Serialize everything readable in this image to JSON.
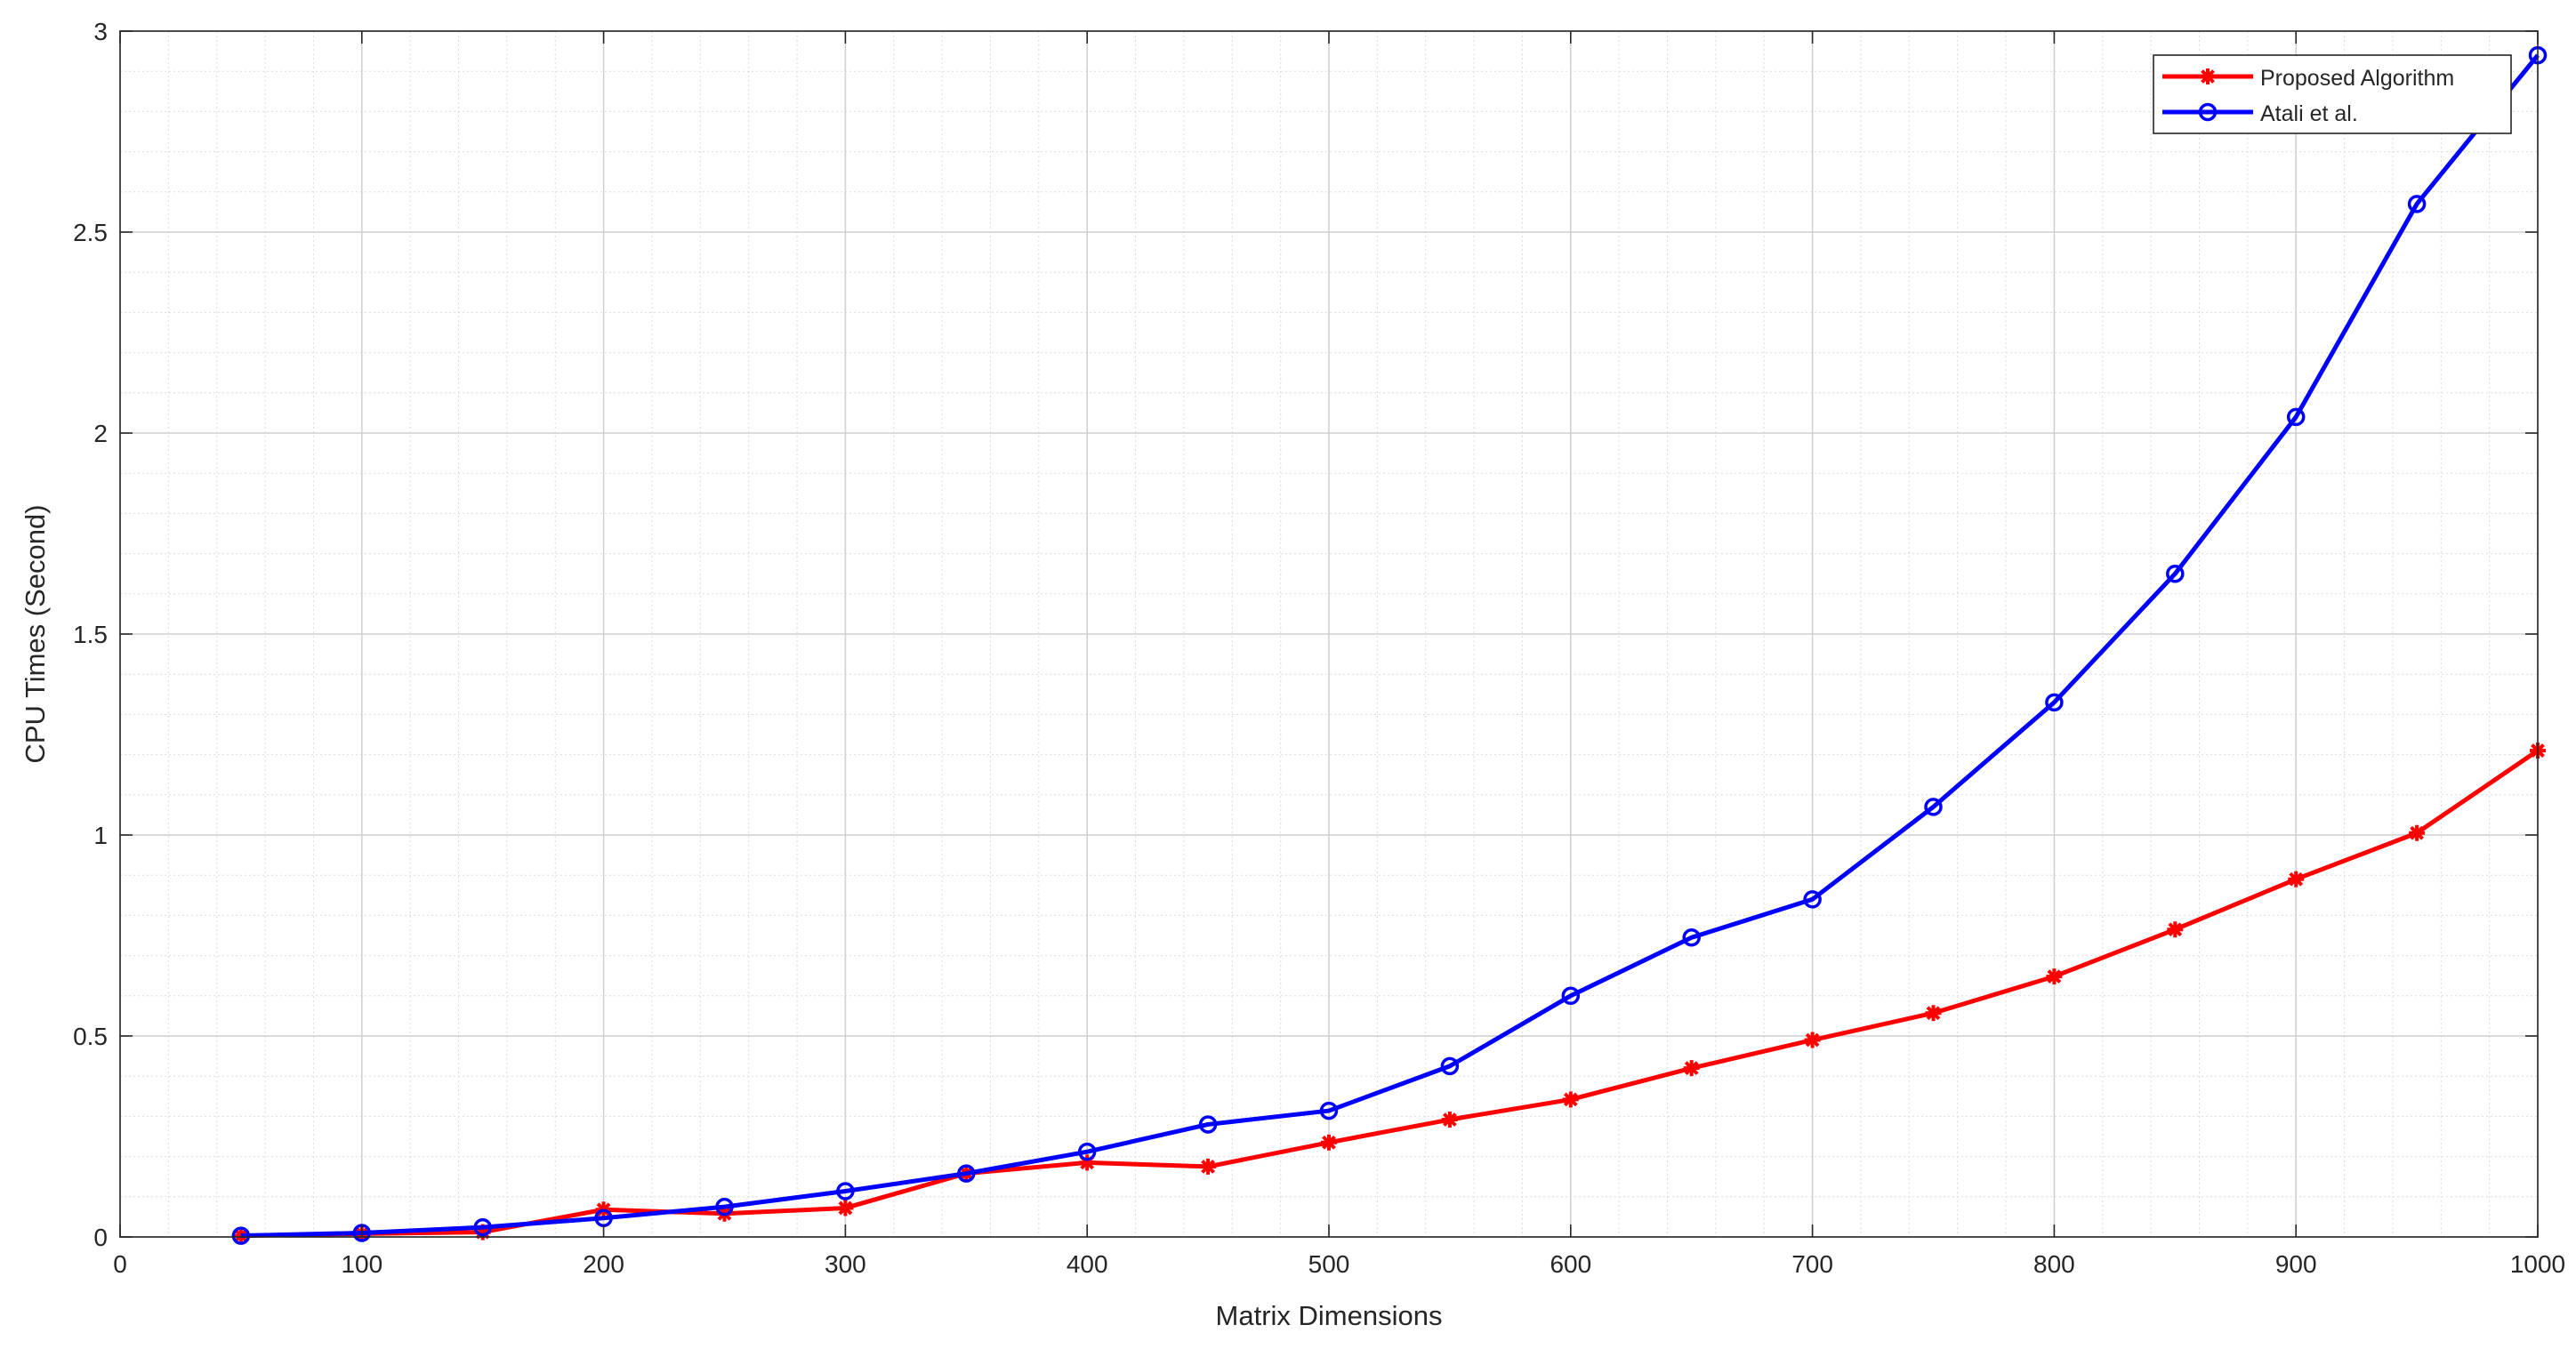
{
  "chart_data": {
    "type": "line",
    "title": "",
    "xlabel": "Matrix Dimensions",
    "ylabel": "CPU Times (Second)",
    "xlim": [
      0,
      1000
    ],
    "ylim": [
      0,
      3
    ],
    "xticks": [
      0,
      100,
      200,
      300,
      400,
      500,
      600,
      700,
      800,
      900,
      1000
    ],
    "yticks": [
      0,
      0.5,
      1,
      1.5,
      2,
      2.5,
      3
    ],
    "xtick_labels": [
      "0",
      "100",
      "200",
      "300",
      "400",
      "500",
      "600",
      "700",
      "800",
      "900",
      "1000"
    ],
    "ytick_labels": [
      "0",
      "0.5",
      "1",
      "1.5",
      "2",
      "2.5",
      "3"
    ],
    "grid": true,
    "minor_grid": true,
    "legend_position": "top-right",
    "x": [
      50,
      100,
      150,
      200,
      250,
      300,
      350,
      400,
      450,
      500,
      550,
      600,
      650,
      700,
      750,
      800,
      850,
      900,
      950,
      1000
    ],
    "series": [
      {
        "name": "Proposed Algorithm",
        "color": "#ff0000",
        "marker": "asterisk",
        "values": [
          0.003,
          0.008,
          0.012,
          0.068,
          0.058,
          0.072,
          0.158,
          0.185,
          0.175,
          0.235,
          0.292,
          0.342,
          0.42,
          0.49,
          0.557,
          0.648,
          0.765,
          0.89,
          1.005,
          1.21
        ]
      },
      {
        "name": "Atali et al.",
        "color": "#0000ff",
        "marker": "circle",
        "values": [
          0.003,
          0.01,
          0.024,
          0.047,
          0.075,
          0.114,
          0.158,
          0.212,
          0.28,
          0.314,
          0.425,
          0.6,
          0.745,
          0.84,
          1.07,
          1.33,
          1.65,
          2.04,
          2.57,
          2.94
        ]
      }
    ]
  }
}
